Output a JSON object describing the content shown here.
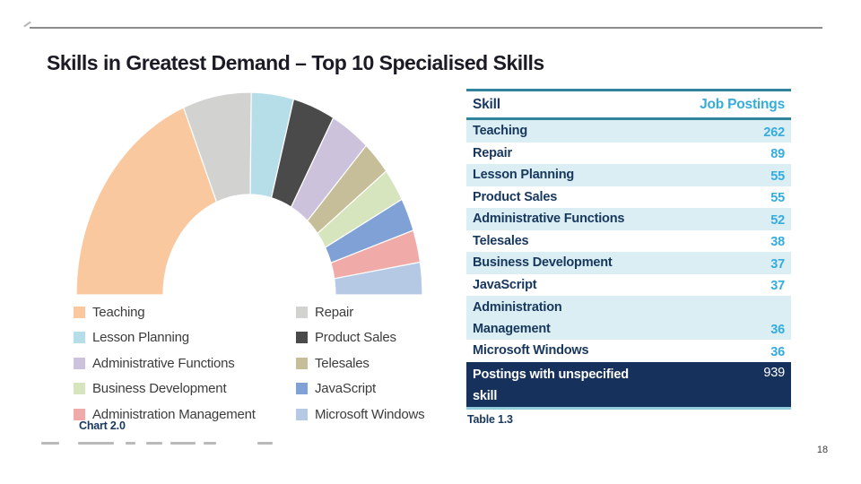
{
  "slide": {
    "title": "Skills in Greatest Demand – Top 10 Specialised Skills",
    "chart_caption": "Chart 2.0",
    "table_caption": "Table 1.3",
    "page_number": "18"
  },
  "theme": {
    "navy": "#17375D",
    "cyan": "#35ACDC",
    "teal_border": "#31849B",
    "teal_light_border": "#92CDDC",
    "row_stripe": "#DAEEF3",
    "footer_row_bg": "#16325C",
    "title_color": "#1B1B25"
  },
  "chart_data": {
    "type": "pie",
    "subtype": "half-donut",
    "title": "",
    "legend_position": "bottom-two-columns",
    "series": [
      {
        "label": "Teaching",
        "value": 262,
        "color": "#FAC89E"
      },
      {
        "label": "Repair",
        "value": 89,
        "color": "#D2D2D0"
      },
      {
        "label": "Lesson Planning",
        "value": 55,
        "color": "#B6DEE9"
      },
      {
        "label": "Product Sales",
        "value": 55,
        "color": "#4A4A4A"
      },
      {
        "label": "Administrative Functions",
        "value": 52,
        "color": "#CCC2DC"
      },
      {
        "label": "Telesales",
        "value": 38,
        "color": "#C5BE98"
      },
      {
        "label": "Business Development",
        "value": 37,
        "color": "#D7E5BE"
      },
      {
        "label": "JavaScript",
        "value": 37,
        "color": "#7FA1D5"
      },
      {
        "label": "Administration Management",
        "value": 36,
        "color": "#F0ABA9"
      },
      {
        "label": "Microsoft Windows",
        "value": 36,
        "color": "#B5C9E5"
      }
    ]
  },
  "table": {
    "header": {
      "skill": "Skill",
      "job_postings": "Job Postings"
    },
    "rows": [
      {
        "skill": "Teaching",
        "value": "262"
      },
      {
        "skill": "Repair",
        "value": "89"
      },
      {
        "skill": "Lesson Planning",
        "value": "55"
      },
      {
        "skill": "Product Sales",
        "value": "55"
      },
      {
        "skill": "Administrative Functions",
        "value": "52"
      },
      {
        "skill": "Telesales",
        "value": "38"
      },
      {
        "skill": "Business Development",
        "value": "37"
      },
      {
        "skill": "JavaScript",
        "value": "37"
      },
      {
        "skill": "Administration Management",
        "value": "36",
        "display_lines": [
          "Administration",
          "Management"
        ]
      },
      {
        "skill": "Microsoft Windows",
        "value": "36"
      }
    ],
    "footer_row": {
      "skill": "Postings with unspecified skill",
      "display_lines": [
        "Postings with unspecified",
        "skill"
      ],
      "value": "939"
    }
  }
}
